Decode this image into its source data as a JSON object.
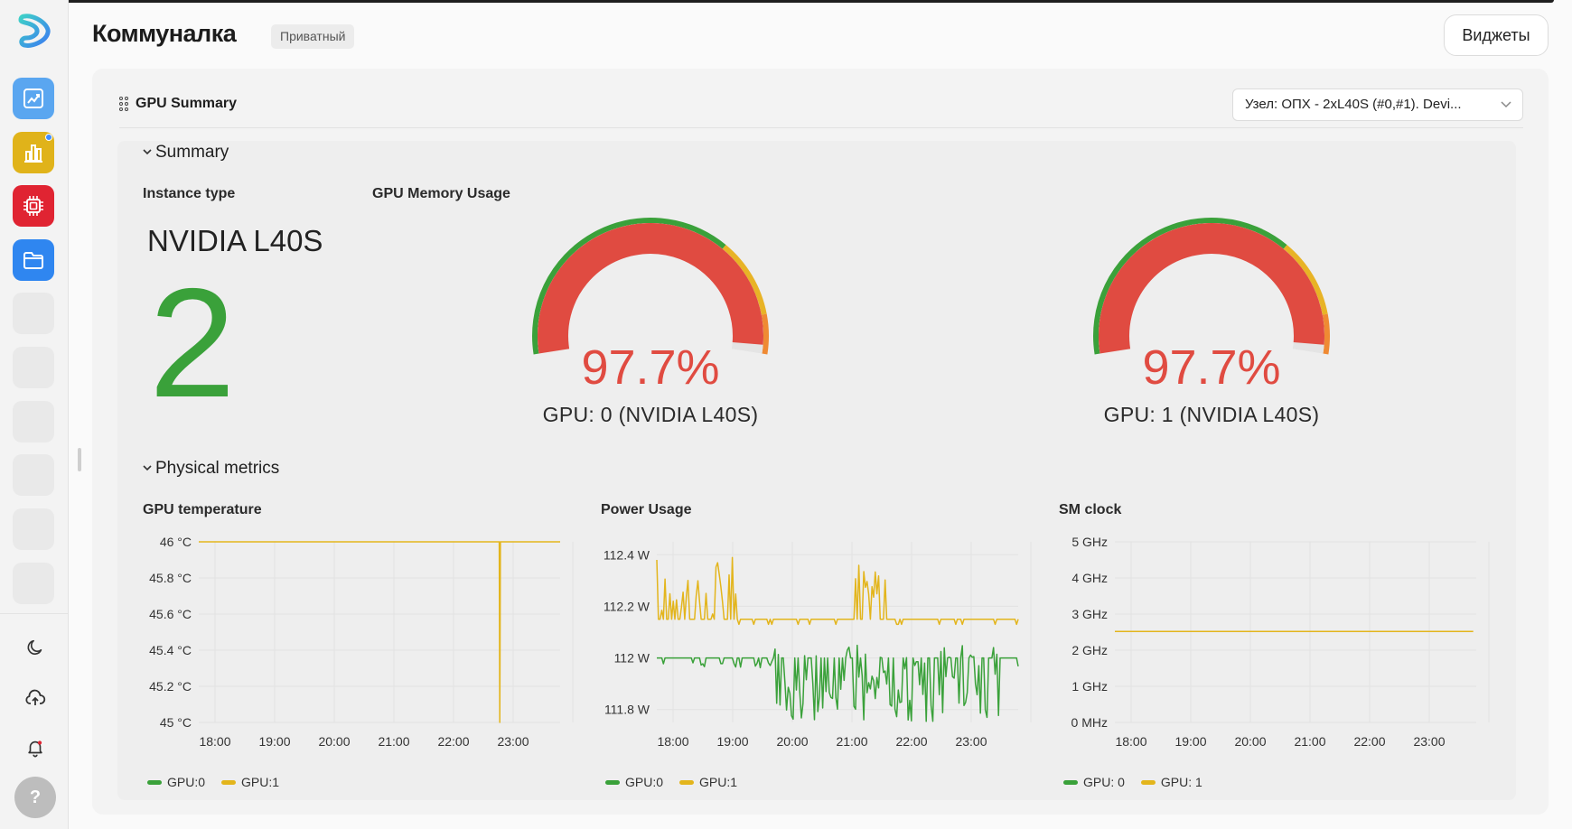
{
  "app": {
    "title": "Коммуналка",
    "badge": "Приватный",
    "widgets_button": "Виджеты"
  },
  "sidebar": {
    "items": [
      {
        "name": "analytics-icon",
        "color": "#5aa6f0"
      },
      {
        "name": "bar-chart-icon",
        "color": "#e0b31a"
      },
      {
        "name": "chip-icon",
        "color": "#e02432"
      },
      {
        "name": "folder-icon",
        "color": "#2f86f0"
      }
    ],
    "bottom": [
      "moon-icon",
      "cloud-upload-icon",
      "bell-icon"
    ],
    "help_label": "?"
  },
  "panel": {
    "title": "GPU Summary",
    "node_select": "Узел: ОПХ - 2xL40S (#0,#1). Devi..."
  },
  "summary": {
    "heading": "Summary",
    "instance_label": "Instance type",
    "instance_name": "NVIDIA L40S",
    "instance_count": "2",
    "memory_label": "GPU Memory Usage",
    "gauges": [
      {
        "value": 97.7,
        "display": "97.7%",
        "label": "GPU: 0 (NVIDIA L40S)"
      },
      {
        "value": 97.7,
        "display": "97.7%",
        "label": "GPU: 1 (NVIDIA L40S)"
      }
    ]
  },
  "physical": {
    "heading": "Physical metrics"
  },
  "colors": {
    "gpu0": "#3aa13a",
    "gpu1": "#e3b51c",
    "gauge_fill": "#e04b41",
    "gauge_green": "#3aa13a",
    "gauge_yellow": "#e8b326",
    "gauge_orange": "#ef8a33"
  },
  "chart_data": [
    {
      "type": "line",
      "title": "GPU temperature",
      "x_ticks": [
        "18:00",
        "19:00",
        "20:00",
        "21:00",
        "22:00",
        "23:00"
      ],
      "y_ticks": [
        "45 °C",
        "45.2 °C",
        "45.4 °C",
        "45.6 °C",
        "45.8 °C",
        "46 °C"
      ],
      "ylim": [
        45,
        46
      ],
      "legend": [
        "GPU:0",
        "GPU:1"
      ],
      "series": [
        {
          "name": "GPU:1",
          "color": "#e3b51c",
          "points": [
            [
              0,
              46
            ],
            [
              5.03,
              46
            ],
            [
              5.04,
              45
            ],
            [
              5.05,
              46
            ],
            [
              6.05,
              46
            ]
          ]
        }
      ]
    },
    {
      "type": "line",
      "title": "Power Usage",
      "x_ticks": [
        "18:00",
        "19:00",
        "20:00",
        "21:00",
        "22:00",
        "23:00"
      ],
      "y_ticks": [
        "111.8 W",
        "112 W",
        "112.2 W",
        "112.4 W"
      ],
      "ylim": [
        111.75,
        112.45
      ],
      "legend": [
        "GPU:0",
        "GPU:1"
      ],
      "series": [
        {
          "name": "GPU:1",
          "color": "#e3b51c",
          "band": [
            112.15,
            112.4
          ],
          "baseline": 112.15
        },
        {
          "name": "GPU:0",
          "color": "#3aa13a",
          "band": [
            111.75,
            112.05
          ],
          "baseline": 112.0
        }
      ]
    },
    {
      "type": "line",
      "title": "SM clock",
      "x_ticks": [
        "18:00",
        "19:00",
        "20:00",
        "21:00",
        "22:00",
        "23:00"
      ],
      "y_ticks": [
        "0 MHz",
        "1 GHz",
        "2 GHz",
        "3 GHz",
        "4 GHz",
        "5 GHz"
      ],
      "ylim": [
        0,
        5
      ],
      "legend": [
        "GPU: 0",
        "GPU: 1"
      ],
      "series": [
        {
          "name": "GPU: 1",
          "color": "#e3b51c",
          "points": [
            [
              0,
              2.52
            ],
            [
              6.0,
              2.52
            ]
          ]
        }
      ]
    }
  ]
}
